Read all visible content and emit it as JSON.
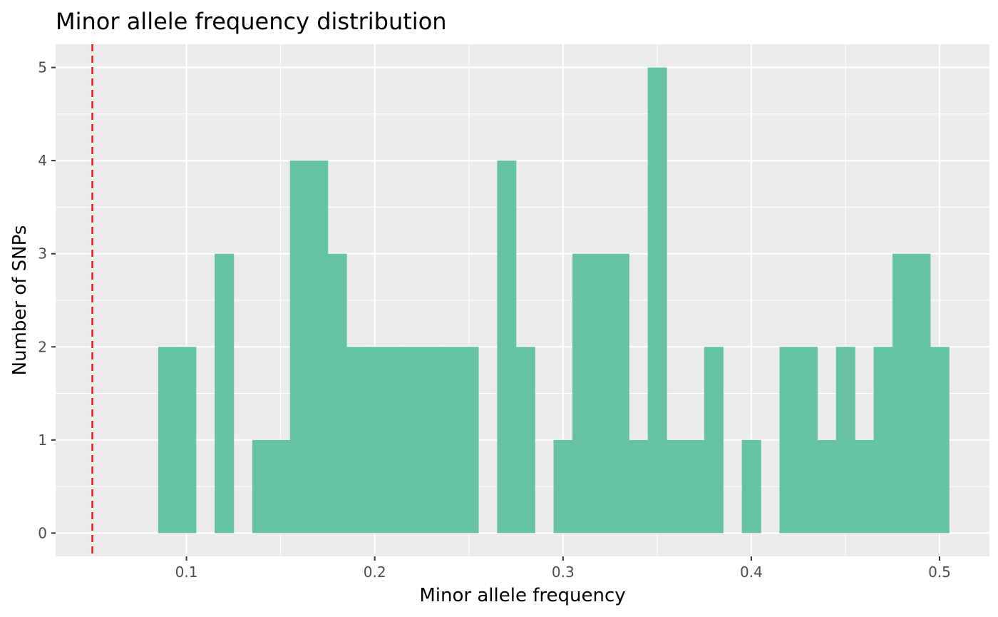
{
  "chart_data": {
    "type": "bar",
    "title": "Minor allele frequency distribution",
    "xlabel": "Minor allele frequency",
    "ylabel": "Number of SNPs",
    "xlim": [
      0.0305,
      0.5265
    ],
    "ylim": [
      -0.25,
      5.25
    ],
    "x_ticks": [
      0.1,
      0.2,
      0.3,
      0.4,
      0.5
    ],
    "x_tick_labels": [
      "0.1",
      "0.2",
      "0.3",
      "0.4",
      "0.5"
    ],
    "y_ticks": [
      0,
      1,
      2,
      3,
      4,
      5
    ],
    "y_tick_labels": [
      "0",
      "1",
      "2",
      "3",
      "4",
      "5"
    ],
    "bin_width": 0.01,
    "bin_start": 0.045,
    "counts": [
      0,
      0,
      0,
      0,
      2,
      2,
      0,
      3,
      0,
      1,
      1,
      4,
      4,
      3,
      2,
      2,
      2,
      2,
      2,
      2,
      2,
      0,
      4,
      2,
      0,
      1,
      3,
      3,
      3,
      1,
      5,
      1,
      1,
      2,
      0,
      1,
      0,
      2,
      2,
      1,
      2,
      1,
      2,
      3,
      3,
      2
    ],
    "threshold": 0.05,
    "grid": true,
    "legend": "none",
    "colors": {
      "bars": "#66c2a5",
      "threshold_line": "#e41a1c",
      "panel": "#ebebeb",
      "grid": "#ffffff"
    }
  }
}
